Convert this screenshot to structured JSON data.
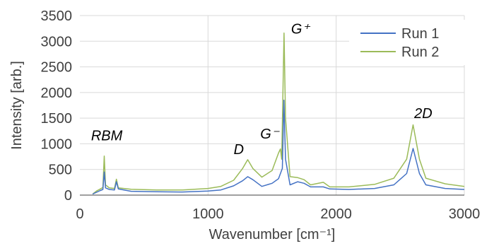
{
  "chart_data": {
    "type": "line",
    "title": "",
    "xlabel": "Wavenumber [cm⁻¹]",
    "ylabel": "Intensity [arb.]",
    "xlim": [
      0,
      3000
    ],
    "ylim": [
      0,
      3500
    ],
    "x_ticks": [
      0,
      1000,
      2000,
      3000
    ],
    "y_ticks": [
      0,
      500,
      1000,
      1500,
      2000,
      2500,
      3000,
      3500
    ],
    "grid": true,
    "legend": "top-right",
    "annotations": [
      {
        "text": "RBM",
        "x": 210,
        "y": 1070
      },
      {
        "text": "D",
        "x": 1240,
        "y": 800
      },
      {
        "text": "G⁻",
        "x": 1480,
        "y": 1100
      },
      {
        "text": "G⁺",
        "x": 1720,
        "y": 3150
      },
      {
        "text": "2D",
        "x": 2680,
        "y": 1500
      }
    ],
    "series": [
      {
        "name": "Run 1",
        "color": "#4472c4",
        "points": [
          [
            100,
            20
          ],
          [
            130,
            55
          ],
          [
            160,
            90
          ],
          [
            180,
            110
          ],
          [
            190,
            450
          ],
          [
            200,
            140
          ],
          [
            230,
            110
          ],
          [
            270,
            100
          ],
          [
            285,
            260
          ],
          [
            300,
            120
          ],
          [
            400,
            75
          ],
          [
            600,
            65
          ],
          [
            800,
            60
          ],
          [
            1000,
            80
          ],
          [
            1100,
            100
          ],
          [
            1200,
            180
          ],
          [
            1270,
            280
          ],
          [
            1310,
            360
          ],
          [
            1350,
            300
          ],
          [
            1420,
            170
          ],
          [
            1500,
            230
          ],
          [
            1550,
            320
          ],
          [
            1580,
            520
          ],
          [
            1592,
            1850
          ],
          [
            1605,
            700
          ],
          [
            1640,
            200
          ],
          [
            1700,
            260
          ],
          [
            1750,
            230
          ],
          [
            1800,
            160
          ],
          [
            1900,
            160
          ],
          [
            1950,
            120
          ],
          [
            2100,
            110
          ],
          [
            2300,
            130
          ],
          [
            2450,
            200
          ],
          [
            2550,
            420
          ],
          [
            2600,
            910
          ],
          [
            2650,
            420
          ],
          [
            2700,
            200
          ],
          [
            2850,
            130
          ],
          [
            3000,
            110
          ]
        ]
      },
      {
        "name": "Run 2",
        "color": "#9bbb59",
        "points": [
          [
            100,
            20
          ],
          [
            130,
            80
          ],
          [
            160,
            120
          ],
          [
            180,
            150
          ],
          [
            190,
            760
          ],
          [
            200,
            200
          ],
          [
            230,
            140
          ],
          [
            270,
            130
          ],
          [
            285,
            310
          ],
          [
            300,
            140
          ],
          [
            400,
            115
          ],
          [
            600,
            100
          ],
          [
            800,
            100
          ],
          [
            1000,
            130
          ],
          [
            1100,
            170
          ],
          [
            1200,
            290
          ],
          [
            1270,
            520
          ],
          [
            1310,
            690
          ],
          [
            1350,
            520
          ],
          [
            1420,
            350
          ],
          [
            1500,
            480
          ],
          [
            1550,
            820
          ],
          [
            1565,
            900
          ],
          [
            1575,
            700
          ],
          [
            1593,
            3160
          ],
          [
            1605,
            1500
          ],
          [
            1640,
            360
          ],
          [
            1700,
            340
          ],
          [
            1750,
            300
          ],
          [
            1800,
            200
          ],
          [
            1900,
            250
          ],
          [
            1950,
            160
          ],
          [
            2100,
            160
          ],
          [
            2300,
            210
          ],
          [
            2450,
            330
          ],
          [
            2550,
            700
          ],
          [
            2600,
            1370
          ],
          [
            2650,
            700
          ],
          [
            2700,
            330
          ],
          [
            2850,
            220
          ],
          [
            3000,
            170
          ]
        ]
      }
    ]
  }
}
